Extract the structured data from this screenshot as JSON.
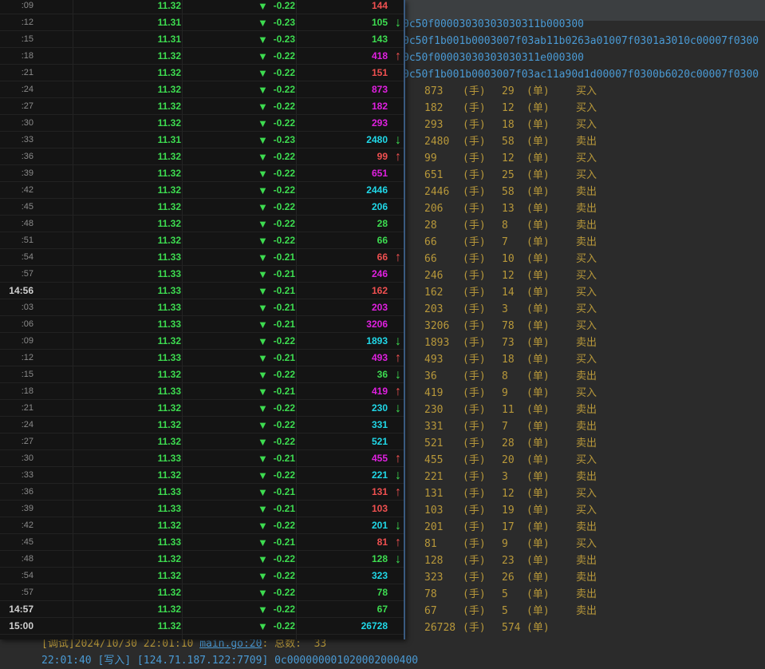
{
  "colors": {
    "red": "#f05050",
    "magenta": "#e020e0",
    "green": "#3ddc50",
    "cyan": "#20d8e8"
  },
  "ticks": [
    {
      "time": ":09",
      "price": "11.32",
      "change": "-0.22",
      "volume": "144",
      "color": "red",
      "arrow": ""
    },
    {
      "time": ":12",
      "price": "11.31",
      "change": "-0.23",
      "volume": "105",
      "color": "green",
      "arrow": "down"
    },
    {
      "time": ":15",
      "price": "11.31",
      "change": "-0.23",
      "volume": "143",
      "color": "green",
      "arrow": ""
    },
    {
      "time": ":18",
      "price": "11.32",
      "change": "-0.22",
      "volume": "418",
      "color": "magenta",
      "arrow": "up"
    },
    {
      "time": ":21",
      "price": "11.32",
      "change": "-0.22",
      "volume": "151",
      "color": "red",
      "arrow": ""
    },
    {
      "time": ":24",
      "price": "11.32",
      "change": "-0.22",
      "volume": "873",
      "color": "magenta",
      "arrow": ""
    },
    {
      "time": ":27",
      "price": "11.32",
      "change": "-0.22",
      "volume": "182",
      "color": "magenta",
      "arrow": ""
    },
    {
      "time": ":30",
      "price": "11.32",
      "change": "-0.22",
      "volume": "293",
      "color": "magenta",
      "arrow": ""
    },
    {
      "time": ":33",
      "price": "11.31",
      "change": "-0.23",
      "volume": "2480",
      "color": "cyan",
      "arrow": "down"
    },
    {
      "time": ":36",
      "price": "11.32",
      "change": "-0.22",
      "volume": "99",
      "color": "red",
      "arrow": "up"
    },
    {
      "time": ":39",
      "price": "11.32",
      "change": "-0.22",
      "volume": "651",
      "color": "magenta",
      "arrow": ""
    },
    {
      "time": ":42",
      "price": "11.32",
      "change": "-0.22",
      "volume": "2446",
      "color": "cyan",
      "arrow": ""
    },
    {
      "time": ":45",
      "price": "11.32",
      "change": "-0.22",
      "volume": "206",
      "color": "cyan",
      "arrow": ""
    },
    {
      "time": ":48",
      "price": "11.32",
      "change": "-0.22",
      "volume": "28",
      "color": "green",
      "arrow": ""
    },
    {
      "time": ":51",
      "price": "11.32",
      "change": "-0.22",
      "volume": "66",
      "color": "green",
      "arrow": ""
    },
    {
      "time": ":54",
      "price": "11.33",
      "change": "-0.21",
      "volume": "66",
      "color": "red",
      "arrow": "up"
    },
    {
      "time": ":57",
      "price": "11.33",
      "change": "-0.21",
      "volume": "246",
      "color": "magenta",
      "arrow": ""
    },
    {
      "time": "14:56",
      "price": "11.33",
      "change": "-0.21",
      "volume": "162",
      "color": "red",
      "arrow": ""
    },
    {
      "time": ":03",
      "price": "11.33",
      "change": "-0.21",
      "volume": "203",
      "color": "magenta",
      "arrow": ""
    },
    {
      "time": ":06",
      "price": "11.33",
      "change": "-0.21",
      "volume": "3206",
      "color": "magenta",
      "arrow": ""
    },
    {
      "time": ":09",
      "price": "11.32",
      "change": "-0.22",
      "volume": "1893",
      "color": "cyan",
      "arrow": "down"
    },
    {
      "time": ":12",
      "price": "11.33",
      "change": "-0.21",
      "volume": "493",
      "color": "magenta",
      "arrow": "up"
    },
    {
      "time": ":15",
      "price": "11.32",
      "change": "-0.22",
      "volume": "36",
      "color": "green",
      "arrow": "down"
    },
    {
      "time": ":18",
      "price": "11.33",
      "change": "-0.21",
      "volume": "419",
      "color": "magenta",
      "arrow": "up"
    },
    {
      "time": ":21",
      "price": "11.32",
      "change": "-0.22",
      "volume": "230",
      "color": "cyan",
      "arrow": "down"
    },
    {
      "time": ":24",
      "price": "11.32",
      "change": "-0.22",
      "volume": "331",
      "color": "cyan",
      "arrow": ""
    },
    {
      "time": ":27",
      "price": "11.32",
      "change": "-0.22",
      "volume": "521",
      "color": "cyan",
      "arrow": ""
    },
    {
      "time": ":30",
      "price": "11.33",
      "change": "-0.21",
      "volume": "455",
      "color": "magenta",
      "arrow": "up"
    },
    {
      "time": ":33",
      "price": "11.32",
      "change": "-0.22",
      "volume": "221",
      "color": "cyan",
      "arrow": "down"
    },
    {
      "time": ":36",
      "price": "11.33",
      "change": "-0.21",
      "volume": "131",
      "color": "red",
      "arrow": "up"
    },
    {
      "time": ":39",
      "price": "11.33",
      "change": "-0.21",
      "volume": "103",
      "color": "red",
      "arrow": ""
    },
    {
      "time": ":42",
      "price": "11.32",
      "change": "-0.22",
      "volume": "201",
      "color": "cyan",
      "arrow": "down"
    },
    {
      "time": ":45",
      "price": "11.33",
      "change": "-0.21",
      "volume": "81",
      "color": "red",
      "arrow": "up"
    },
    {
      "time": ":48",
      "price": "11.32",
      "change": "-0.22",
      "volume": "128",
      "color": "green",
      "arrow": "down"
    },
    {
      "time": ":54",
      "price": "11.32",
      "change": "-0.22",
      "volume": "323",
      "color": "cyan",
      "arrow": ""
    },
    {
      "time": ":57",
      "price": "11.32",
      "change": "-0.22",
      "volume": "78",
      "color": "green",
      "arrow": ""
    },
    {
      "time": "14:57",
      "price": "11.32",
      "change": "-0.22",
      "volume": "67",
      "color": "green",
      "arrow": ""
    },
    {
      "time": "15:00",
      "price": "11.32",
      "change": "-0.22",
      "volume": "26728",
      "color": "cyan",
      "arrow": ""
    }
  ],
  "down_triangle": "▼",
  "hex_lines": [
    "0c50f00003030303030311b000300",
    "0c50f1b001b0003007f03ab11b0263a01007f0301a3010c00007f0300",
    "0c50f00003030303030311e000300",
    "0c50f1b001b0003007f03ac11a90d1d00007f0300b6020c00007f0300"
  ],
  "trade_labels": {
    "hand": "(手)",
    "order": "(单)"
  },
  "trades": [
    [
      "873",
      "29",
      "买入"
    ],
    [
      "182",
      "12",
      "买入"
    ],
    [
      "293",
      "18",
      "买入"
    ],
    [
      "2480",
      "58",
      "卖出"
    ],
    [
      "99",
      "12",
      "买入"
    ],
    [
      "651",
      "25",
      "买入"
    ],
    [
      "2446",
      "58",
      "卖出"
    ],
    [
      "206",
      "13",
      "卖出"
    ],
    [
      "28",
      "8",
      "卖出"
    ],
    [
      "66",
      "7",
      "卖出"
    ],
    [
      "66",
      "10",
      "买入"
    ],
    [
      "246",
      "12",
      "买入"
    ],
    [
      "162",
      "14",
      "买入"
    ],
    [
      "203",
      "3",
      "买入"
    ],
    [
      "3206",
      "78",
      "买入"
    ],
    [
      "1893",
      "73",
      "卖出"
    ],
    [
      "493",
      "18",
      "买入"
    ],
    [
      "36",
      "8",
      "卖出"
    ],
    [
      "419",
      "9",
      "买入"
    ],
    [
      "230",
      "11",
      "卖出"
    ],
    [
      "331",
      "7",
      "卖出"
    ],
    [
      "521",
      "28",
      "卖出"
    ],
    [
      "455",
      "20",
      "买入"
    ],
    [
      "221",
      "3",
      "卖出"
    ],
    [
      "131",
      "12",
      "买入"
    ],
    [
      "103",
      "19",
      "买入"
    ],
    [
      "201",
      "17",
      "卖出"
    ],
    [
      "81",
      "9",
      "买入"
    ],
    [
      "128",
      "23",
      "卖出"
    ],
    [
      "323",
      "26",
      "卖出"
    ],
    [
      "78",
      "5",
      "卖出"
    ],
    [
      "67",
      "5",
      "卖出"
    ],
    [
      "26728",
      "574",
      ""
    ]
  ],
  "log": {
    "debug_prefix": "[调试]2024/10/30 22:01:10 ",
    "debug_link": "main.go:20",
    "debug_suffix": ": 总数:  33",
    "write_line": "22:01:40 [写入] [124.71.187.122:7709] 0c000000001020002000400"
  }
}
